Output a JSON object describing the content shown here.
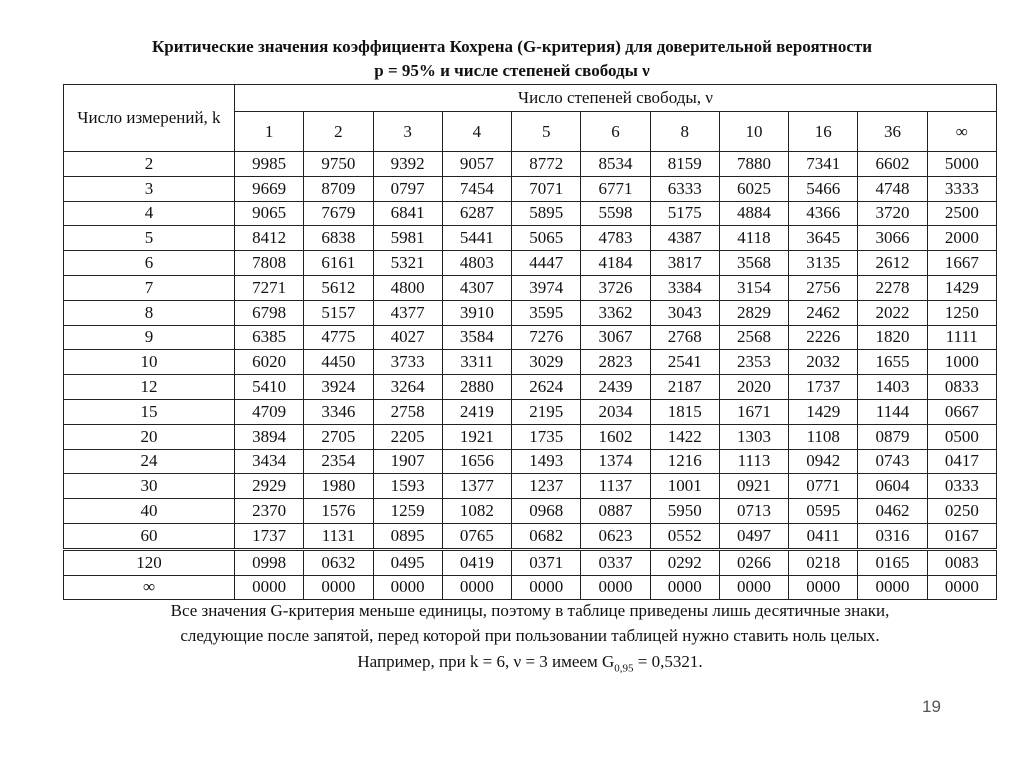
{
  "title": [
    "Критические значения коэффициента Кохрена (G-критерия) для доверительной вероятности",
    "p = 95% и числе степеней свободы ν"
  ],
  "table": {
    "row_header": "Число измерений, k",
    "col_group": "Число степеней свободы, ν",
    "columns": [
      "1",
      "2",
      "3",
      "4",
      "5",
      "6",
      "8",
      "10",
      "16",
      "36",
      "∞"
    ],
    "rows": [
      {
        "k": "2",
        "values": [
          "9985",
          "9750",
          "9392",
          "9057",
          "8772",
          "8534",
          "8159",
          "7880",
          "7341",
          "6602",
          "5000"
        ]
      },
      {
        "k": "3",
        "values": [
          "9669",
          "8709",
          "0797",
          "7454",
          "7071",
          "6771",
          "6333",
          "6025",
          "5466",
          "4748",
          "3333"
        ]
      },
      {
        "k": "4",
        "values": [
          "9065",
          "7679",
          "6841",
          "6287",
          "5895",
          "5598",
          "5175",
          "4884",
          "4366",
          "3720",
          "2500"
        ]
      },
      {
        "k": "5",
        "values": [
          "8412",
          "6838",
          "5981",
          "5441",
          "5065",
          "4783",
          "4387",
          "4118",
          "3645",
          "3066",
          "2000"
        ]
      },
      {
        "k": "6",
        "values": [
          "7808",
          "6161",
          "5321",
          "4803",
          "4447",
          "4184",
          "3817",
          "3568",
          "3135",
          "2612",
          "1667"
        ]
      },
      {
        "k": "7",
        "values": [
          "7271",
          "5612",
          "4800",
          "4307",
          "3974",
          "3726",
          "3384",
          "3154",
          "2756",
          "2278",
          "1429"
        ]
      },
      {
        "k": "8",
        "values": [
          "6798",
          "5157",
          "4377",
          "3910",
          "3595",
          "3362",
          "3043",
          "2829",
          "2462",
          "2022",
          "1250"
        ]
      },
      {
        "k": "9",
        "values": [
          "6385",
          "4775",
          "4027",
          "3584",
          "7276",
          "3067",
          "2768",
          "2568",
          "2226",
          "1820",
          "1111"
        ]
      },
      {
        "k": "10",
        "values": [
          "6020",
          "4450",
          "3733",
          "3311",
          "3029",
          "2823",
          "2541",
          "2353",
          "2032",
          "1655",
          "1000"
        ]
      },
      {
        "k": "12",
        "values": [
          "5410",
          "3924",
          "3264",
          "2880",
          "2624",
          "2439",
          "2187",
          "2020",
          "1737",
          "1403",
          "0833"
        ]
      },
      {
        "k": "15",
        "values": [
          "4709",
          "3346",
          "2758",
          "2419",
          "2195",
          "2034",
          "1815",
          "1671",
          "1429",
          "1144",
          "0667"
        ]
      },
      {
        "k": "20",
        "values": [
          "3894",
          "2705",
          "2205",
          "1921",
          "1735",
          "1602",
          "1422",
          "1303",
          "1108",
          "0879",
          "0500"
        ]
      },
      {
        "k": "24",
        "values": [
          "3434",
          "2354",
          "1907",
          "1656",
          "1493",
          "1374",
          "1216",
          "1113",
          "0942",
          "0743",
          "0417"
        ]
      },
      {
        "k": "30",
        "values": [
          "2929",
          "1980",
          "1593",
          "1377",
          "1237",
          "1137",
          "1001",
          "0921",
          "0771",
          "0604",
          "0333"
        ]
      },
      {
        "k": "40",
        "values": [
          "2370",
          "1576",
          "1259",
          "1082",
          "0968",
          "0887",
          "5950",
          "0713",
          "0595",
          "0462",
          "0250"
        ]
      },
      {
        "k": "60",
        "values": [
          "1737",
          "1131",
          "0895",
          "0765",
          "0682",
          "0623",
          "0552",
          "0497",
          "0411",
          "0316",
          "0167"
        ]
      },
      {
        "k": "120",
        "values": [
          "0998",
          "0632",
          "0495",
          "0419",
          "0371",
          "0337",
          "0292",
          "0266",
          "0218",
          "0165",
          "0083"
        ]
      },
      {
        "k": "∞",
        "values": [
          "0000",
          "0000",
          "0000",
          "0000",
          "0000",
          "0000",
          "0000",
          "0000",
          "0000",
          "0000",
          "0000"
        ]
      }
    ]
  },
  "note": {
    "lines": [
      "Все значения G-критерия меньше единицы, поэтому в таблице приведены лишь десятичные знаки,",
      "следующие после запятой, перед которой при пользовании таблицей нужно ставить ноль целых."
    ],
    "example_before": "Например, при k = 6, ν = 3 имеем G",
    "example_sub": "0,95",
    "example_after": " = 0,5321."
  },
  "page_number": "19"
}
